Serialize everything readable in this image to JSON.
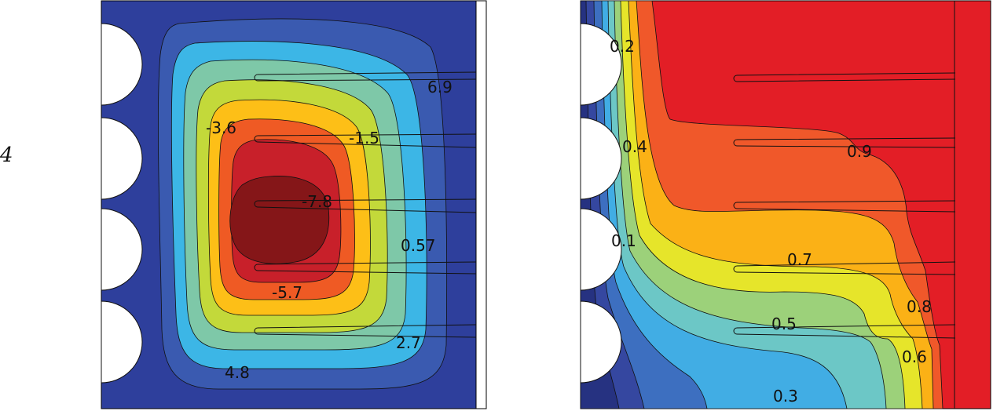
{
  "row_label": "4",
  "left_plot": {
    "contour_labels": [
      "6.9",
      "-3.6",
      "-1.5",
      "-7.8",
      "0.57",
      "-5.7",
      "2.7",
      "4.8"
    ],
    "colors": {
      "outer": "#2e3f9c",
      "l1": "#3a5ab0",
      "l2": "#3cb6e6",
      "l3": "#7ec8a8",
      "l4": "#c3d93a",
      "l5": "#fdbf17",
      "l6": "#ef5a24",
      "l7": "#c8202a",
      "core": "#851618"
    }
  },
  "right_plot": {
    "contour_labels": [
      "0.2",
      "0.4",
      "0.9",
      "0.1",
      "0.7",
      "0.8",
      "0.5",
      "0.6",
      "0.3"
    ],
    "colors": {
      "c1": "#263281",
      "c2": "#3547a0",
      "c3": "#3d6fc0",
      "c4": "#41ade4",
      "c5": "#6cc7c6",
      "c6": "#9cd17a",
      "c7": "#e6e52a",
      "c8": "#fbb116",
      "c9": "#f0582a",
      "c10": "#e31e26"
    }
  }
}
